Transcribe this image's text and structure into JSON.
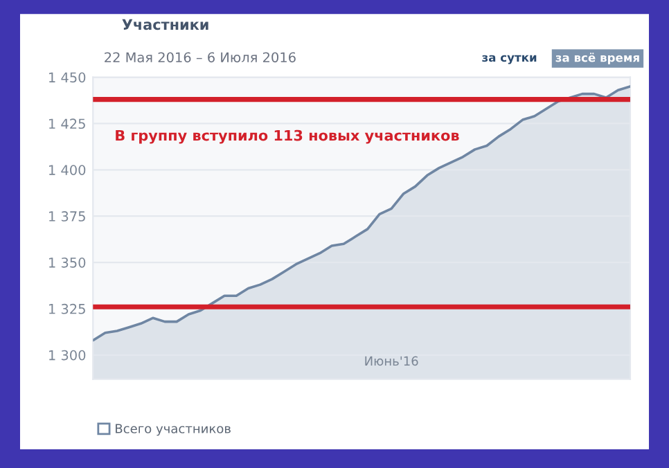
{
  "chart_data": {
    "type": "area",
    "title": "Участники",
    "subtitle": "22 Мая 2016 – 6 Июля 2016",
    "annotations": [
      "В группу вступило 113 новых участников",
      "за сутки",
      "за всё время"
    ],
    "categories": [
      null,
      null,
      null,
      null,
      null,
      null,
      null,
      null,
      null,
      null,
      null,
      null,
      null,
      null,
      null,
      null,
      null,
      null,
      null,
      null,
      null,
      null,
      null,
      null,
      null,
      "Июнь'16",
      null,
      null,
      null,
      null,
      null,
      null,
      null,
      null,
      null,
      null,
      null,
      null,
      null,
      null,
      null,
      null,
      null,
      null,
      null,
      null
    ],
    "series": [
      {
        "name": "Всего участников",
        "color": "#6f86a3",
        "values": [
          1308,
          1312,
          1313,
          1315,
          1317,
          1320,
          1318,
          1318,
          1322,
          1324,
          1328,
          1332,
          1332,
          1336,
          1338,
          1341,
          1345,
          1349,
          1352,
          1355,
          1359,
          1360,
          1364,
          1368,
          1376,
          1379,
          1387,
          1391,
          1397,
          1401,
          1404,
          1407,
          1411,
          1413,
          1418,
          1422,
          1427,
          1429,
          1433,
          1437,
          1439,
          1441,
          1441,
          1439,
          1443,
          1445
        ]
      }
    ],
    "ref_lines": [
      {
        "axis": "y",
        "value": 1438,
        "color": "#d3202a"
      },
      {
        "axis": "y",
        "value": 1326,
        "color": "#d3202a"
      }
    ],
    "ylim": [
      1287,
      1450
    ],
    "yticks": [
      {
        "value": 1300,
        "label": "1 300"
      },
      {
        "value": 1325,
        "label": "1 325"
      },
      {
        "value": 1350,
        "label": "1 350"
      },
      {
        "value": 1375,
        "label": "1 375"
      },
      {
        "value": 1400,
        "label": "1 400"
      },
      {
        "value": 1425,
        "label": "1 425"
      },
      {
        "value": 1450,
        "label": "1 450"
      }
    ],
    "grid": "y",
    "legend": "bottom left"
  }
}
